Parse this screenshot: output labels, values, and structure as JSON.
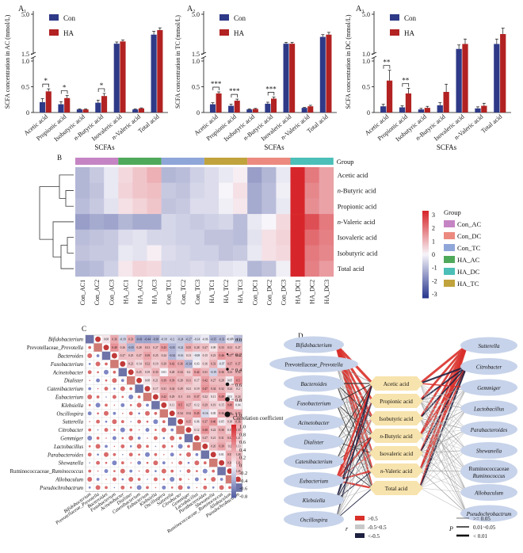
{
  "colors": {
    "con": "#2e3a87",
    "ha": "#b22222",
    "heat_hi": "#d7262b",
    "heat_lo": "#2b3a8f"
  },
  "panel_A": {
    "legend": [
      "Con",
      "HA"
    ],
    "xlabel": "SCFAs",
    "categories": [
      "Acetic acid",
      "Propionic acid",
      "Isobutyric acid",
      "n-Butyric acid",
      "Isovaleric acid",
      "n-Valeric acid",
      "Total acid"
    ]
  },
  "chart_data": [
    {
      "type": "bar",
      "panel": "A1",
      "label": "A",
      "ylabel": "SCFA concentration in AC (mmol/L)",
      "categories": [
        "Acetic acid",
        "Propionic acid",
        "Isobutyric acid",
        "n-Butyric acid",
        "Isovaleric acid",
        "n-Valeric acid",
        "Total acid"
      ],
      "series": [
        {
          "name": "Con",
          "values": [
            0.2,
            0.16,
            0.06,
            0.19,
            2.4,
            0.06,
            3.2
          ],
          "err": [
            0.07,
            0.05,
            0.01,
            0.05,
            0.15,
            0.01,
            0.3
          ]
        },
        {
          "name": "HA",
          "values": [
            0.41,
            0.28,
            0.06,
            0.32,
            2.6,
            0.08,
            3.6
          ],
          "err": [
            0.05,
            0.05,
            0.01,
            0.05,
            0.12,
            0.01,
            0.2
          ]
        }
      ],
      "sig": [
        {
          "index": 0,
          "text": "*"
        },
        {
          "index": 1,
          "text": "*"
        },
        {
          "index": 3,
          "text": "*"
        }
      ],
      "yticks_lower": [
        "0",
        "0.5",
        "1.0"
      ],
      "yticks_upper": [
        "1.5",
        "5.0"
      ]
    },
    {
      "type": "bar",
      "panel": "A2",
      "label": "A",
      "ylabel": "SCFA concentration in TC (mmol/L)",
      "categories": [
        "Acetic acid",
        "Propionic acid",
        "Isobutyric acid",
        "n-Butyric acid",
        "Isovaleric acid",
        "n-Valeric acid",
        "Total acid"
      ],
      "series": [
        {
          "name": "Con",
          "values": [
            0.16,
            0.13,
            0.06,
            0.17,
            2.4,
            0.09,
            3.0
          ],
          "err": [
            0.03,
            0.03,
            0.01,
            0.03,
            0.12,
            0.01,
            0.2
          ]
        },
        {
          "name": "HA",
          "values": [
            0.37,
            0.23,
            0.07,
            0.27,
            2.4,
            0.12,
            3.2
          ],
          "err": [
            0.03,
            0.03,
            0.01,
            0.03,
            0.12,
            0.02,
            0.2
          ]
        }
      ],
      "sig": [
        {
          "index": 0,
          "text": "***"
        },
        {
          "index": 1,
          "text": "***"
        },
        {
          "index": 3,
          "text": "***"
        }
      ],
      "yticks_lower": [
        "0",
        "0.5",
        "1.0"
      ],
      "yticks_upper": [
        "1.5",
        "5.0"
      ]
    },
    {
      "type": "bar",
      "panel": "A3",
      "label": "A",
      "ylabel": "SCFA concentration in DC (mmol/L)",
      "categories": [
        "Acetic acid",
        "Propionic acid",
        "Isobutyric acid",
        "n-Butyric acid",
        "Isovaleric acid",
        "n-Valeric acid",
        "Total acid"
      ],
      "series": [
        {
          "name": "Con",
          "values": [
            0.12,
            0.1,
            0.06,
            0.14,
            1.5,
            0.08,
            2.0
          ],
          "err": [
            0.04,
            0.03,
            0.02,
            0.05,
            0.4,
            0.03,
            0.5
          ]
        },
        {
          "name": "HA",
          "values": [
            0.62,
            0.37,
            0.09,
            0.4,
            2.0,
            0.13,
            3.0
          ],
          "err": [
            0.2,
            0.1,
            0.03,
            0.15,
            0.5,
            0.05,
            0.6
          ]
        }
      ],
      "sig": [
        {
          "index": 0,
          "text": "**"
        },
        {
          "index": 1,
          "text": "**"
        }
      ],
      "yticks_lower": [
        "0",
        "0.5",
        "1.0"
      ],
      "yticks_upper": [
        "1.0",
        "5.0"
      ]
    },
    {
      "type": "heatmap",
      "panel": "B",
      "label": "B",
      "columns": [
        "Con_AC1",
        "Con_AC2",
        "Con_AC3",
        "HA_AC1",
        "HA_AC2",
        "HA_AC3",
        "Con_TC1",
        "Con_TC2",
        "Con_TC3",
        "HA_TC1",
        "HA_TC2",
        "HA_TC3",
        "Con_DC1",
        "Con_DC2",
        "Con_DC3",
        "HA_DC1",
        "HA_DC2",
        "HA_DC3"
      ],
      "rows": [
        "Acetic acid",
        "n-Butyric acid",
        "Propionic acid",
        "n-Valeric acid",
        "Isovaleric acid",
        "Isobutyric acid",
        "Total acid"
      ],
      "values": [
        [
          -1.0,
          -0.7,
          -0.2,
          0.4,
          0.7,
          1.0,
          -1.0,
          -0.9,
          -0.6,
          -0.4,
          -0.2,
          0.1,
          -1.4,
          -1.0,
          -0.2,
          3.0,
          1.8,
          1.2
        ],
        [
          -1.0,
          -0.8,
          -0.2,
          0.5,
          0.7,
          0.8,
          -0.7,
          -0.8,
          -0.5,
          -0.4,
          0.0,
          0.3,
          -1.2,
          -0.9,
          -0.1,
          3.0,
          1.6,
          1.2
        ],
        [
          -0.9,
          -0.7,
          -0.3,
          0.3,
          0.5,
          0.7,
          -0.8,
          -0.7,
          -0.4,
          -0.4,
          -0.1,
          0.2,
          -1.2,
          -0.9,
          -0.2,
          3.0,
          1.5,
          1.2
        ],
        [
          -1.4,
          -1.2,
          -1.3,
          -1.0,
          -1.2,
          -1.2,
          -0.5,
          -0.6,
          -0.7,
          -0.6,
          -0.5,
          -0.9,
          -0.2,
          0.0,
          0.4,
          3.2,
          2.4,
          1.8
        ],
        [
          -0.9,
          -0.8,
          -0.7,
          -0.4,
          -0.3,
          -0.5,
          -0.5,
          -0.6,
          -0.6,
          -0.8,
          -0.8,
          -0.9,
          -0.3,
          0.3,
          0.5,
          3.2,
          2.0,
          1.7
        ],
        [
          -0.8,
          -0.7,
          -0.7,
          -0.2,
          -0.3,
          0.1,
          -0.4,
          -0.5,
          -0.6,
          -0.6,
          -0.8,
          -0.7,
          -0.2,
          0.3,
          0.4,
          3.2,
          1.8,
          1.6
        ],
        [
          -1.0,
          -0.9,
          -0.6,
          0.2,
          0.5,
          0.4,
          -0.5,
          -0.5,
          -0.4,
          -0.5,
          -0.3,
          -0.2,
          -1.0,
          -0.8,
          -0.1,
          3.0,
          1.7,
          1.3
        ]
      ],
      "group_label": "Group",
      "groups": [
        {
          "name": "Con_AC",
          "color": "#c585c4"
        },
        {
          "name": "Con_DC",
          "color": "#ec8a7f"
        },
        {
          "name": "Con_TC",
          "color": "#8fa6d8"
        },
        {
          "name": "HA_AC",
          "color": "#4fa95a"
        },
        {
          "name": "HA_DC",
          "color": "#4bbfb8"
        },
        {
          "name": "HA_TC",
          "color": "#c0a33c"
        }
      ],
      "column_groups": [
        "Con_AC",
        "HA_AC",
        "Con_TC",
        "HA_TC",
        "Con_DC",
        "HA_DC"
      ],
      "scale_ticks": [
        "3",
        "2",
        "1",
        "0",
        "-1",
        "-2",
        "-3"
      ],
      "range": [
        -3,
        3
      ]
    },
    {
      "type": "heatmap",
      "panel": "C",
      "label": "C",
      "labels": [
        "Bifidobacterium",
        "Prevotellaceae_Prevotella",
        "Bacteroides",
        "Fusobacterium",
        "Acinetobacter",
        "Dialister",
        "Catenibacterium",
        "Eubacterium",
        "Klebsiella",
        "Oscillospira",
        "Sutterella",
        "Citrobacter",
        "Gemmiger",
        "Lactobacillus",
        "Parabacteroides",
        "Shewanella",
        "Ruminococcaceae_Ruminococcus",
        "Allobaculum",
        "Pseudochrobactrum"
      ],
      "colorbar_label": "Correlation coefficient",
      "colorbar_ticks": [
        "1.0",
        "0.8",
        "0.6",
        "0.4",
        "0.2",
        "0",
        "-0.2",
        "-0.4",
        "-0.6",
        "-0.8"
      ],
      "pvalue_ticks": [
        "0.0",
        "0.2",
        "0.4",
        "0.6",
        "0.8",
        "1.0"
      ],
      "cell_values_upper": [
        [
          "0.08",
          "0.36",
          "-0.18",
          "0.33",
          "-0.43",
          "-0.44",
          "-0.38",
          "-0.18",
          "-0.2",
          "-0.24",
          "-0.27",
          "-0.14",
          "-0.06",
          "-0.35",
          "-0.33",
          "-0.07",
          "-0.3"
        ],
        [
          "0.48",
          "0.26",
          "-0.35",
          "0.28",
          "0.31",
          "0.27",
          "0.43",
          "-0.35",
          "-0.22",
          "0.35",
          "0.28",
          "0.27",
          "0.09",
          "0.33",
          "0.31",
          "0.27"
        ],
        [
          "0.27",
          "0.25",
          "0.27",
          "0.39",
          "0.25",
          "0.24",
          "-0.34",
          "-0.16",
          "0.13",
          "-0.08",
          "0.15",
          "0.23",
          "0.46",
          "0.37",
          "0.37"
        ],
        [
          "0.23",
          "0.14",
          "0.32",
          "0.19",
          "0.29",
          "0.42",
          "0.36",
          "-0.34",
          "0.03",
          "0.16",
          "0.33",
          "-0.07",
          "0.37",
          "0.37"
        ],
        [
          "0.25",
          "0.19",
          "0.33",
          "0.01",
          "0.28",
          "0.34",
          "0.2",
          "0.42",
          "0.31",
          "-0.19",
          "0.36",
          "0.33",
          "0.34"
        ],
        [
          "0.08",
          "0.21",
          "0.39",
          "0.39",
          "0.28",
          "0.31",
          "0.17",
          "0.42",
          "0.27",
          "0.28",
          "0.05",
          "0.5"
        ],
        [
          "0.17",
          "0.31",
          "0.34",
          "0.29",
          "0.21",
          "0.19",
          "0.47",
          "0.34",
          "0.32",
          "0.24",
          "0.2"
        ],
        [
          "0.42",
          "0.29",
          "0.3",
          "0.3",
          "0.37",
          "0.22",
          "0.11",
          "0.49",
          "0.01",
          "0.24"
        ],
        [
          "0.11",
          "0.5",
          "0.27",
          "0.12",
          "0.29",
          "0.19",
          "0.15",
          "0.49",
          "0.04"
        ],
        [
          "0.34",
          "0.32",
          "0.45",
          "-0.16",
          "0.05",
          "0.36",
          "0.36",
          "0.37"
        ],
        [
          "0.35",
          "0.06",
          "0.37",
          "0.46",
          "0.05",
          "0.18",
          "0.36"
        ],
        [
          "0.12",
          "0.48",
          "0.22",
          "0.36",
          "0.15",
          "0.33"
        ],
        [
          "0.27",
          "0.21",
          "0.31",
          "0.32",
          "0.21"
        ],
        [
          "0.26",
          "0.39",
          "0.2",
          "0.13"
        ],
        [
          "0.01",
          "0.35",
          "0.28"
        ],
        [
          "0.36",
          "0.31"
        ],
        [
          "0.26"
        ]
      ]
    },
    {
      "type": "network",
      "panel": "D",
      "label": "D",
      "left_nodes": [
        "Bifidobacterium",
        "Prevotellaceae_Prevotella",
        "Bacteroides",
        "Fusobacterium",
        "Acinetobacter",
        "Dialister",
        "Catenibacterium",
        "Eubacterium",
        "Klebsiella",
        "Oscillospira"
      ],
      "center_nodes": [
        "Acetic acid",
        "Propionic acid",
        "Isobutyric acid",
        "n-Butyric acid",
        "Isovaleric acid",
        "n-Valeric acid",
        "Total acid"
      ],
      "right_nodes": [
        "Sutterella",
        "Citrobacter",
        "Gemmiger",
        "Lactobacillus",
        "Parabacteroides",
        "Shewanella",
        "Ruminococcaceae Ruminococcus",
        "Allobaculum",
        "Pseudochrobactrum"
      ],
      "legend_r": {
        "symbol": "r",
        "items": [
          ">0.5",
          "-0.5~0.5",
          "<-0.5"
        ]
      },
      "legend_p": {
        "symbol": "P",
        "items": [
          ">= 0.05",
          "0.01~0.05",
          "< 0.01"
        ]
      }
    }
  ]
}
